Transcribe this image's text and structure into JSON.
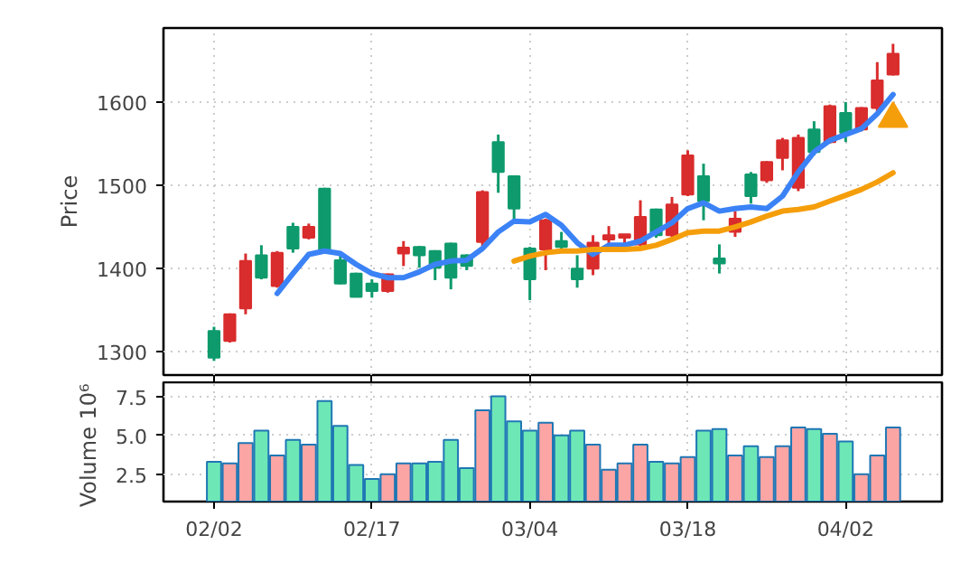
{
  "chart_data": [
    {
      "type": "candlestick",
      "ylabel": "Price",
      "categories": [
        null,
        null,
        null,
        null,
        null,
        null,
        null,
        null,
        null,
        null,
        null,
        null,
        null,
        null,
        null,
        null,
        null,
        null,
        null,
        null,
        null,
        null,
        null,
        null,
        null,
        null,
        null,
        null,
        null,
        null,
        null,
        null,
        null,
        null,
        null,
        null,
        null,
        null,
        null,
        null,
        null,
        null,
        null,
        null
      ],
      "ohlc": [
        [
          1325,
          1330,
          1289,
          1293
        ],
        [
          1313,
          1346,
          1311,
          1345
        ],
        [
          1352,
          1418,
          1345,
          1409
        ],
        [
          1416,
          1428,
          1387,
          1389
        ],
        [
          1379,
          1421,
          1377,
          1419
        ],
        [
          1450,
          1455,
          1419,
          1424
        ],
        [
          1437,
          1454,
          1435,
          1450
        ],
        [
          1496,
          1497,
          1422,
          1423
        ],
        [
          1410,
          1416,
          1381,
          1382
        ],
        [
          1394,
          1395,
          1366,
          1366
        ],
        [
          1382,
          1387,
          1365,
          1373
        ],
        [
          1373,
          1394,
          1371,
          1393
        ],
        [
          1418,
          1433,
          1403,
          1425
        ],
        [
          1426,
          1427,
          1401,
          1416
        ],
        [
          1421,
          1422,
          1386,
          1401
        ],
        [
          1430,
          1431,
          1375,
          1389
        ],
        [
          1416,
          1417,
          1398,
          1403
        ],
        [
          1432,
          1494,
          1427,
          1492
        ],
        [
          1552,
          1561,
          1491,
          1516
        ],
        [
          1511,
          1511,
          1458,
          1472
        ],
        [
          1424,
          1426,
          1362,
          1387
        ],
        [
          1423,
          1460,
          1398,
          1458
        ],
        [
          1433,
          1444,
          1424,
          1426
        ],
        [
          1400,
          1416,
          1377,
          1387
        ],
        [
          1400,
          1440,
          1392,
          1431
        ],
        [
          1435,
          1451,
          1428,
          1440
        ],
        [
          1437,
          1441,
          1428,
          1441
        ],
        [
          1429,
          1482,
          1427,
          1462
        ],
        [
          1471,
          1472,
          1437,
          1440
        ],
        [
          1440,
          1486,
          1438,
          1477
        ],
        [
          1489,
          1542,
          1487,
          1536
        ],
        [
          1511,
          1526,
          1458,
          1481
        ],
        [
          1412,
          1429,
          1394,
          1406
        ],
        [
          1444,
          1469,
          1438,
          1460
        ],
        [
          1513,
          1516,
          1478,
          1487
        ],
        [
          1506,
          1529,
          1503,
          1528
        ],
        [
          1533,
          1557,
          1518,
          1554
        ],
        [
          1497,
          1561,
          1493,
          1557
        ],
        [
          1567,
          1577,
          1536,
          1540
        ],
        [
          1552,
          1597,
          1550,
          1595
        ],
        [
          1587,
          1600,
          1552,
          1563
        ],
        [
          1567,
          1594,
          1565,
          1593
        ],
        [
          1593,
          1648,
          1588,
          1626
        ],
        [
          1633,
          1670,
          1632,
          1658
        ]
      ],
      "colors": [
        "#0e9a6c",
        "#d92c2c",
        "#d92c2c",
        "#0e9a6c",
        "#d92c2c",
        "#0e9a6c",
        "#d92c2c",
        "#0e9a6c",
        "#0e9a6c",
        "#0e9a6c",
        "#0e9a6c",
        "#d92c2c",
        "#d92c2c",
        "#0e9a6c",
        "#0e9a6c",
        "#0e9a6c",
        "#0e9a6c",
        "#d92c2c",
        "#0e9a6c",
        "#0e9a6c",
        "#0e9a6c",
        "#d92c2c",
        "#0e9a6c",
        "#0e9a6c",
        "#d92c2c",
        "#d92c2c",
        "#d92c2c",
        "#d92c2c",
        "#0e9a6c",
        "#d92c2c",
        "#d92c2c",
        "#0e9a6c",
        "#0e9a6c",
        "#d92c2c",
        "#0e9a6c",
        "#d92c2c",
        "#d92c2c",
        "#d92c2c",
        "#0e9a6c",
        "#d92c2c",
        "#0e9a6c",
        "#d92c2c",
        "#d92c2c",
        "#d92c2c"
      ],
      "series": [
        {
          "type": "line",
          "color": "#3b82f6",
          "values": [
            null,
            null,
            null,
            null,
            1370,
            1394,
            1417,
            1421,
            1418,
            1405,
            1394,
            1389,
            1389,
            1396,
            1405,
            1409,
            1410,
            1424,
            1444,
            1457,
            1456,
            1465,
            1452,
            1431,
            1417,
            1428,
            1428,
            1433,
            1444,
            1455,
            1472,
            1479,
            1469,
            1472,
            1474,
            1472,
            1487,
            1516,
            1540,
            1554,
            1561,
            1568,
            1586,
            1609
          ]
        },
        {
          "type": "line",
          "color": "#f59e0b",
          "values": [
            null,
            null,
            null,
            null,
            null,
            null,
            null,
            null,
            null,
            null,
            null,
            null,
            null,
            null,
            null,
            null,
            null,
            null,
            null,
            1409,
            1415,
            1419,
            1421,
            1421,
            1423,
            1423,
            1423,
            1424,
            1428,
            1435,
            1443,
            1445,
            1445,
            1450,
            1456,
            1463,
            1469,
            1471,
            1474,
            1481,
            1488,
            1495,
            1504,
            1515
          ]
        },
        {
          "type": "scatter",
          "marker": "triangle",
          "color": "#f59e0b",
          "values": [
            null,
            null,
            null,
            null,
            null,
            null,
            null,
            null,
            null,
            null,
            null,
            null,
            null,
            null,
            null,
            null,
            null,
            null,
            null,
            null,
            null,
            null,
            null,
            null,
            null,
            null,
            null,
            null,
            null,
            null,
            null,
            null,
            null,
            null,
            null,
            null,
            null,
            null,
            null,
            null,
            null,
            null,
            null,
            1580
          ]
        }
      ],
      "ylim": [
        1272,
        1689
      ],
      "yticks": [
        1300,
        1400,
        1500,
        1600
      ],
      "grid": true,
      "tick_labels": "y"
    },
    {
      "type": "bar",
      "ylabel": "Volume  10⁶",
      "categories": [
        "02/02",
        null,
        null,
        null,
        null,
        null,
        null,
        null,
        null,
        null,
        "02/17",
        null,
        null,
        null,
        null,
        null,
        null,
        null,
        null,
        null,
        "03/04",
        null,
        null,
        null,
        null,
        null,
        null,
        null,
        null,
        null,
        "03/18",
        null,
        null,
        null,
        null,
        null,
        null,
        null,
        null,
        null,
        "04/02",
        null,
        null,
        null
      ],
      "values": [
        3.3,
        3.2,
        4.5,
        5.3,
        3.7,
        4.7,
        4.4,
        7.2,
        5.6,
        3.1,
        2.2,
        2.5,
        3.2,
        3.2,
        3.3,
        4.7,
        2.9,
        6.6,
        7.5,
        5.9,
        5.3,
        5.8,
        5.0,
        5.3,
        4.4,
        2.8,
        3.2,
        4.4,
        3.3,
        3.2,
        3.6,
        5.3,
        5.4,
        3.7,
        4.3,
        3.6,
        4.3,
        5.5,
        5.4,
        5.1,
        4.6,
        2.5,
        3.7,
        5.5
      ],
      "colors": [
        "#6ee7b7",
        "#fca5a5",
        "#fca5a5",
        "#6ee7b7",
        "#fca5a5",
        "#6ee7b7",
        "#fca5a5",
        "#6ee7b7",
        "#6ee7b7",
        "#6ee7b7",
        "#6ee7b7",
        "#fca5a5",
        "#fca5a5",
        "#6ee7b7",
        "#6ee7b7",
        "#6ee7b7",
        "#6ee7b7",
        "#fca5a5",
        "#6ee7b7",
        "#6ee7b7",
        "#6ee7b7",
        "#fca5a5",
        "#6ee7b7",
        "#6ee7b7",
        "#fca5a5",
        "#fca5a5",
        "#fca5a5",
        "#fca5a5",
        "#6ee7b7",
        "#fca5a5",
        "#fca5a5",
        "#6ee7b7",
        "#6ee7b7",
        "#fca5a5",
        "#6ee7b7",
        "#fca5a5",
        "#fca5a5",
        "#fca5a5",
        "#6ee7b7",
        "#fca5a5",
        "#6ee7b7",
        "#fca5a5",
        "#fca5a5",
        "#fca5a5"
      ],
      "ylim": [
        0.75,
        8.4
      ],
      "yticks": [
        {
          "value": 2.5,
          "label": "2.5"
        },
        {
          "value": 5,
          "label": "5.0"
        },
        {
          "value": 7.5,
          "label": "7.5"
        }
      ],
      "grid": true
    }
  ]
}
